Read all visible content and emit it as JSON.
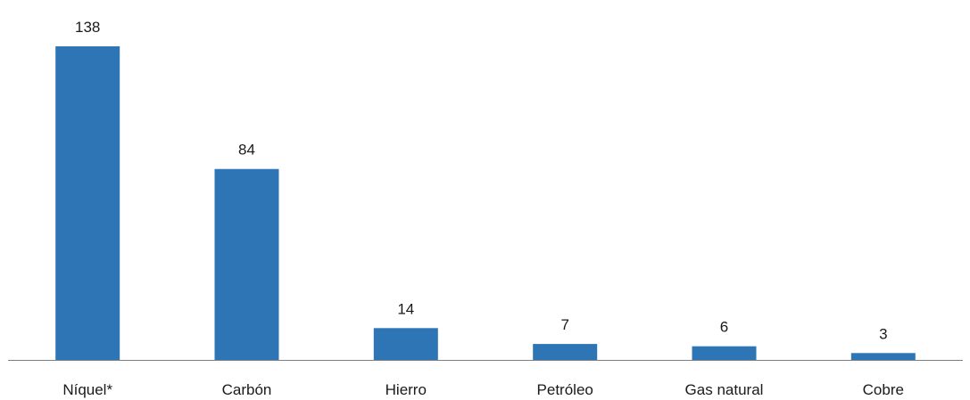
{
  "chart_data": {
    "type": "bar",
    "title": "",
    "xlabel": "",
    "ylabel": "",
    "categories": [
      "Níquel*",
      "Carbón",
      "Hierro",
      "Petróleo",
      "Gas natural",
      "Cobre"
    ],
    "values": [
      138,
      84,
      14,
      7,
      6,
      3
    ],
    "data_labels": [
      "138",
      "84",
      "14",
      "7",
      "6",
      "3"
    ],
    "ylim": [
      0,
      138
    ],
    "grid": false,
    "legend": "none",
    "colors": {
      "bar": "#2E75B6",
      "axis": "#7f7f7f",
      "text": "#1a1a1a"
    }
  }
}
